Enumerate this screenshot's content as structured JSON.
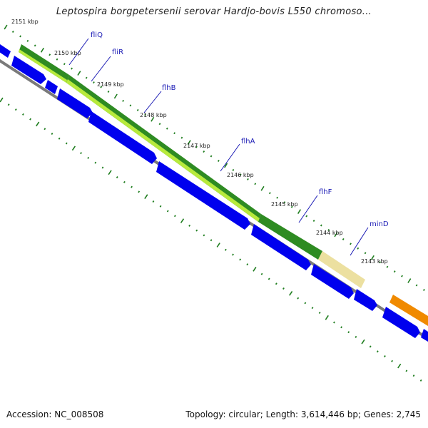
{
  "title": "Leptospira borgpetersenii serovar Hardjo-bovis L550 chromoso...",
  "footer": {
    "accession": "Accession: NC_008508",
    "topology": "Topology: circular; Length: 3,614,446 bp; Genes: 2,745"
  },
  "colors": {
    "cds": "#0000ee",
    "backbone": "#7a7a7a",
    "tick": "#1e7d1e",
    "gene_label": "#1a1ab5",
    "dark_green": "#2e8b22",
    "light_green": "#b7ea3c",
    "pale_yellow": "#ece0a0",
    "orange": "#f08a00"
  },
  "ticks": [
    "2151 kbp",
    "2150 kbp",
    "2149 kbp",
    "2148 kbp",
    "2147 kbp",
    "2146 kbp",
    "2145 kbp",
    "2144 kbp",
    "2143 kbp"
  ],
  "genes": [
    "fliQ",
    "fliR",
    "flhB",
    "flhA",
    "flhF",
    "minD"
  ]
}
